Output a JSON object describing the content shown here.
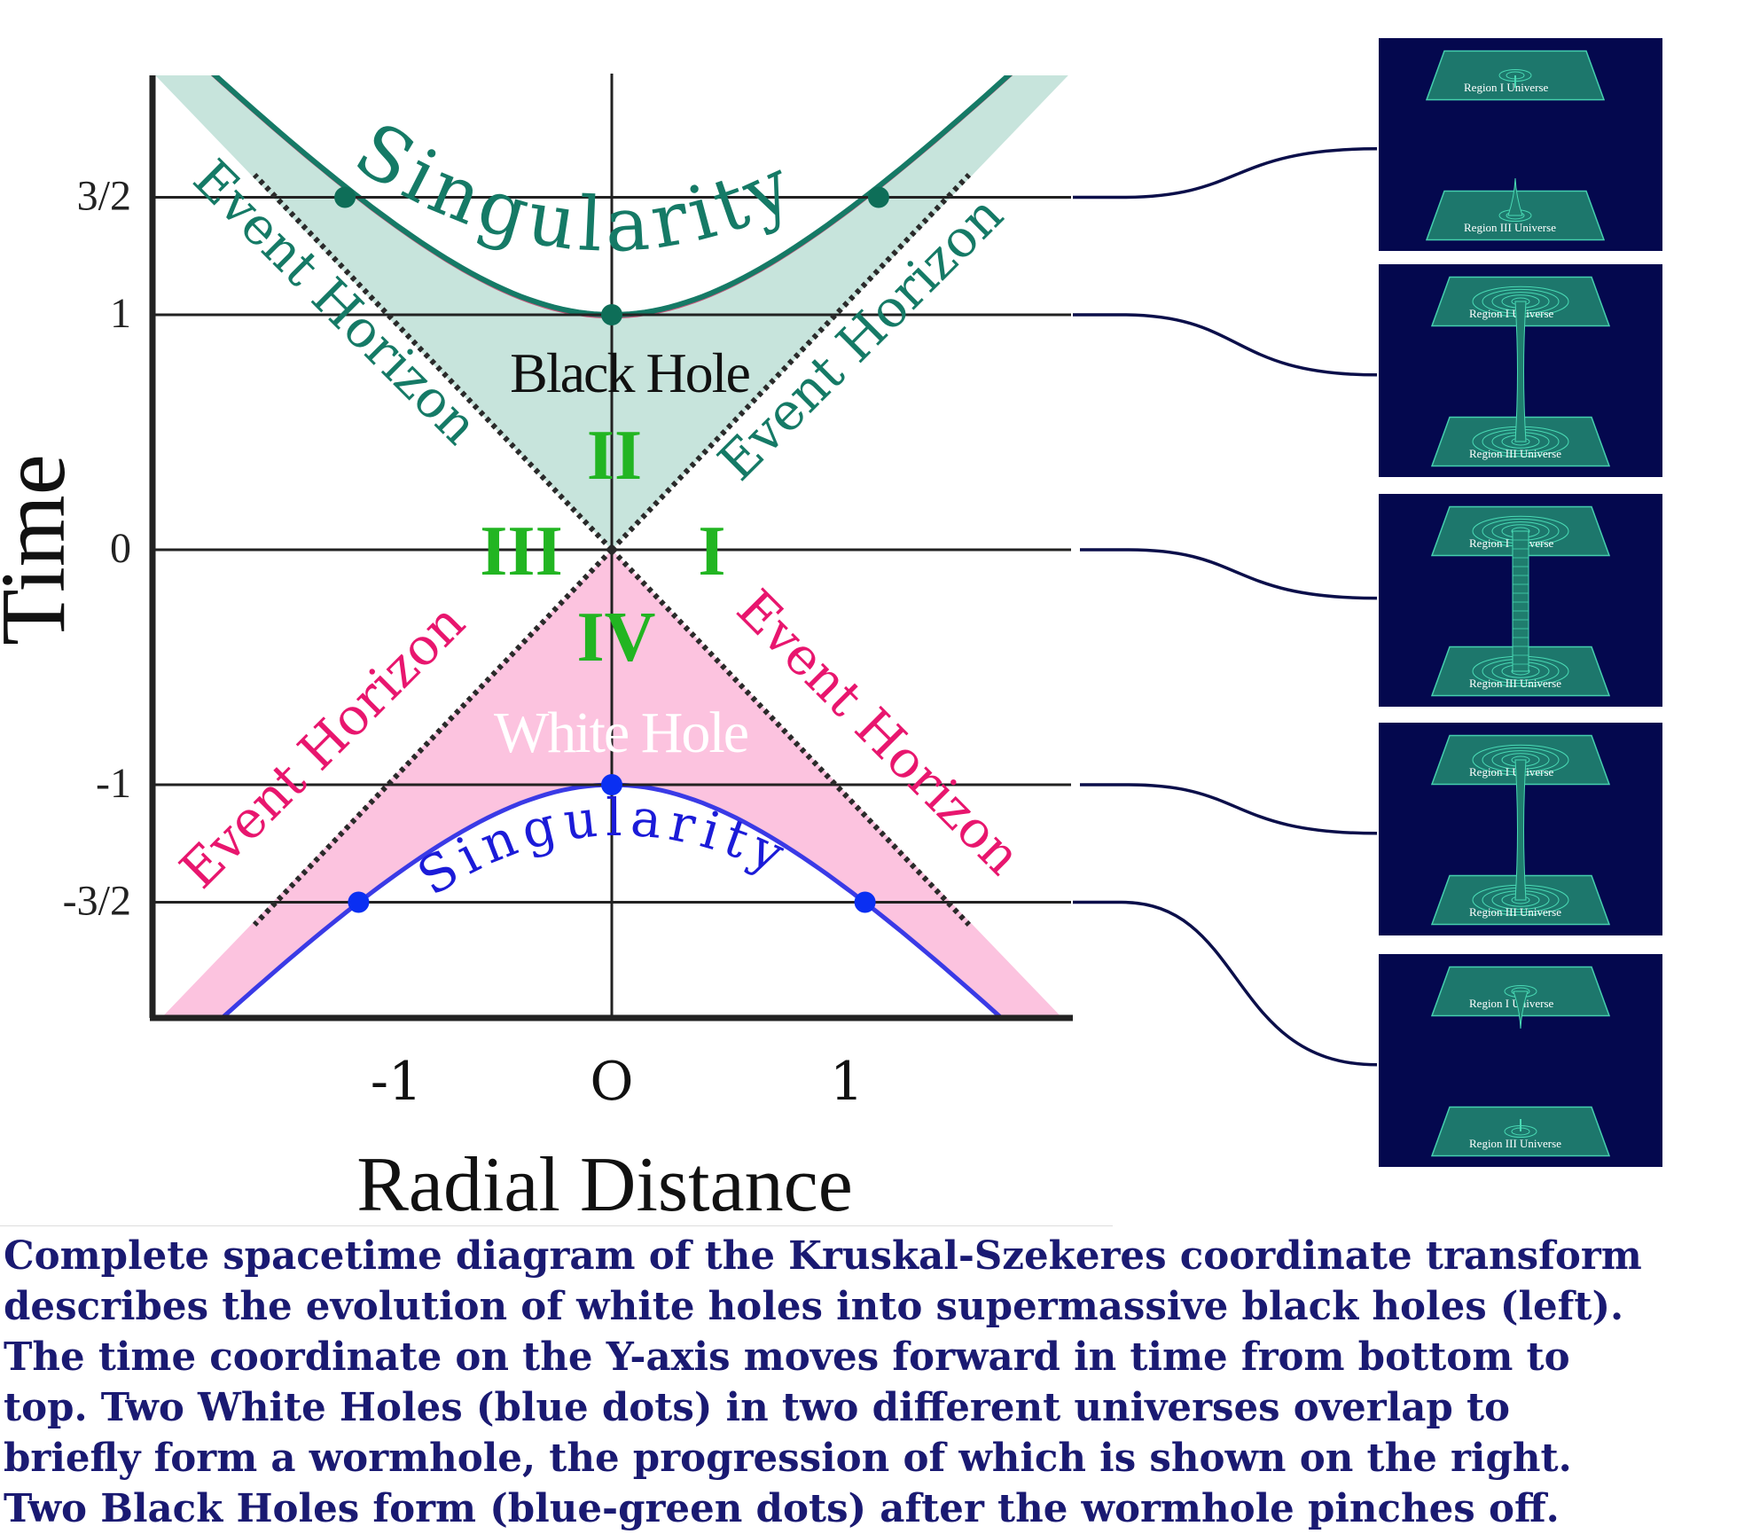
{
  "colors": {
    "bh_fill": "#c7e4dc",
    "bh_line": "#157a66",
    "bh_edge": "#c3567a",
    "wh_fill": "#fcc3df",
    "wh_line": "#3a3ae6",
    "wh_text": "#e8166e",
    "dot_blue": "#0a2ff2",
    "dot_green": "#0e6e58",
    "region_green": "#22b522",
    "panel_bg": "#04084e",
    "panel_line": "#49d9b4",
    "connector": "#0b0f4a",
    "caption": "#1a1a72"
  },
  "axes": {
    "ylabel": "Time",
    "xlabel": "Radial Distance",
    "yticks": [
      {
        "value": 1.5,
        "label": "3/2"
      },
      {
        "value": 1,
        "label": "1"
      },
      {
        "value": 0,
        "label": "0"
      },
      {
        "value": -1,
        "label": "-1"
      },
      {
        "value": -1.5,
        "label": "-3/2"
      }
    ],
    "xticks": [
      {
        "value": -1,
        "label": "-1"
      },
      {
        "value": 0,
        "label": "O"
      },
      {
        "value": 1,
        "label": "1"
      }
    ]
  },
  "labels": {
    "singularity": "Singularity",
    "black_hole": "Black Hole",
    "white_hole": "White Hole",
    "event_horizon": "Event Horizon",
    "region_1": "I",
    "region_2": "II",
    "region_3": "III",
    "region_4": "IV"
  },
  "points": [
    {
      "name": "black-hole-dot",
      "x": -1.18,
      "t": 1.5,
      "color": "green"
    },
    {
      "name": "black-hole-dot",
      "x": 1.18,
      "t": 1.5,
      "color": "green"
    },
    {
      "name": "black-hole-dot",
      "x": 0,
      "t": 1,
      "color": "green"
    },
    {
      "name": "white-hole-dot",
      "x": 0,
      "t": -1,
      "color": "blue"
    },
    {
      "name": "white-hole-dot",
      "x": -1.12,
      "t": -1.5,
      "color": "blue"
    },
    {
      "name": "white-hole-dot",
      "x": 1.12,
      "t": -1.5,
      "color": "blue"
    }
  ],
  "panels": [
    {
      "t": 1.5,
      "stage": "separate",
      "top_label": "Region I Universe",
      "bottom_label": "Region III Universe"
    },
    {
      "t": 1,
      "stage": "pinching",
      "top_label": "Region I Universe",
      "bottom_label": "Region III Universe"
    },
    {
      "t": 0,
      "stage": "open",
      "top_label": "Region I Universe",
      "bottom_label": "Region III Universe"
    },
    {
      "t": -1,
      "stage": "pinching",
      "top_label": "Region I Universe",
      "bottom_label": "Region III Universe"
    },
    {
      "t": -1.5,
      "stage": "separate",
      "top_label": "Region I Universe",
      "bottom_label": "Region III Universe"
    }
  ],
  "caption": [
    "Complete spacetime diagram of the Kruskal-Szekeres coordinate transform",
    "describes the evolution of white holes into supermassive black holes (left).",
    "The time coordinate on the Y-axis moves forward in time from bottom to",
    "top. Two White Holes (blue dots) in two different universes overlap to",
    "briefly form a wormhole, the progression of which is shown on the right.",
    "Two Black Holes form (blue-green dots) after the wormhole pinches off."
  ]
}
